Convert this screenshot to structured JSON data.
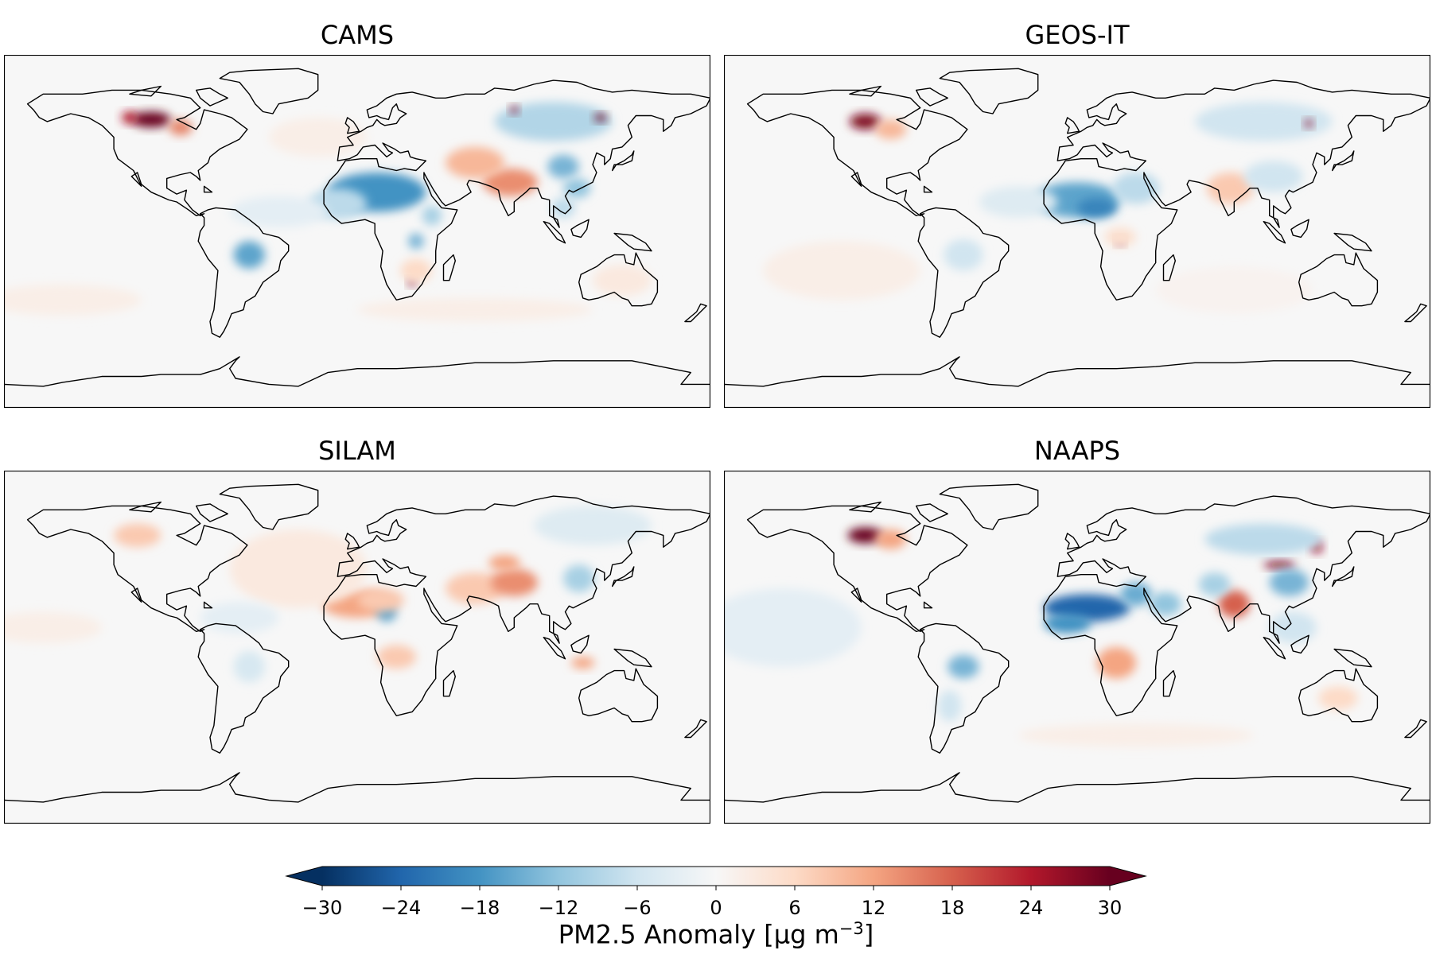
{
  "panels": [
    {
      "name": "cams",
      "title": "CAMS",
      "hotspots": [
        {
          "lon": -105,
          "lat": 57,
          "value": 30,
          "rlon": 10,
          "rlat": 4
        },
        {
          "lon": -116,
          "lat": 58,
          "value": 24,
          "rlon": 4,
          "rlat": 3
        },
        {
          "lon": -90,
          "lat": 53,
          "value": 15,
          "rlon": 6,
          "rlat": 4
        },
        {
          "lon": 10,
          "lat": 20,
          "value": -18,
          "rlon": 25,
          "rlat": 10
        },
        {
          "lon": -10,
          "lat": 14,
          "value": -8,
          "rlon": 15,
          "rlat": 8
        },
        {
          "lon": 38,
          "lat": 8,
          "value": -10,
          "rlon": 5,
          "rlat": 5
        },
        {
          "lon": 30,
          "lat": -5,
          "value": -14,
          "rlon": 4,
          "rlat": 4
        },
        {
          "lon": 78,
          "lat": 25,
          "value": 14,
          "rlon": 14,
          "rlat": 7
        },
        {
          "lon": 60,
          "lat": 35,
          "value": 10,
          "rlon": 15,
          "rlat": 8
        },
        {
          "lon": 105,
          "lat": 33,
          "value": -14,
          "rlon": 8,
          "rlat": 6
        },
        {
          "lon": 112,
          "lat": 22,
          "value": -12,
          "rlon": 7,
          "rlat": 5
        },
        {
          "lon": 105,
          "lat": 12,
          "value": -8,
          "rlon": 6,
          "rlat": 5
        },
        {
          "lon": 100,
          "lat": 56,
          "value": -9,
          "rlon": 30,
          "rlat": 10
        },
        {
          "lon": 124,
          "lat": 58,
          "value": 30,
          "rlon": 3,
          "rlat": 2
        },
        {
          "lon": 80,
          "lat": 62,
          "value": 28,
          "rlon": 2,
          "rlat": 2
        },
        {
          "lon": -55,
          "lat": -12,
          "value": -16,
          "rlon": 8,
          "rlat": 7
        },
        {
          "lon": 28,
          "lat": -26,
          "value": 28,
          "rlon": 2,
          "rlat": 2
        },
        {
          "lon": 30,
          "lat": -20,
          "value": 6,
          "rlon": 8,
          "rlat": 6
        },
        {
          "lon": 135,
          "lat": -25,
          "value": 3,
          "rlon": 15,
          "rlat": 8
        },
        {
          "lon": -40,
          "lat": 10,
          "value": -3,
          "rlon": 25,
          "rlat": 8
        },
        {
          "lon": -150,
          "lat": -35,
          "value": 2,
          "rlon": 40,
          "rlat": 8
        },
        {
          "lon": 60,
          "lat": -40,
          "value": 2,
          "rlon": 60,
          "rlat": 6
        },
        {
          "lon": -20,
          "lat": 48,
          "value": 2,
          "rlon": 25,
          "rlat": 10
        }
      ]
    },
    {
      "name": "geos-it",
      "title": "GEOS-IT",
      "hotspots": [
        {
          "lon": -108,
          "lat": 56,
          "value": 28,
          "rlon": 8,
          "rlat": 4
        },
        {
          "lon": -95,
          "lat": 52,
          "value": 10,
          "rlon": 8,
          "rlat": 5
        },
        {
          "lon": 0,
          "lat": 16,
          "value": -16,
          "rlon": 22,
          "rlat": 9
        },
        {
          "lon": 10,
          "lat": 12,
          "value": -20,
          "rlon": 10,
          "rlat": 5
        },
        {
          "lon": 30,
          "lat": 22,
          "value": -8,
          "rlon": 12,
          "rlat": 8
        },
        {
          "lon": 78,
          "lat": 22,
          "value": 8,
          "rlon": 12,
          "rlat": 8
        },
        {
          "lon": 100,
          "lat": 28,
          "value": -6,
          "rlon": 15,
          "rlat": 8
        },
        {
          "lon": 95,
          "lat": 56,
          "value": -6,
          "rlon": 35,
          "rlat": 10
        },
        {
          "lon": 118,
          "lat": 55,
          "value": 28,
          "rlon": 2,
          "rlat": 2
        },
        {
          "lon": 22,
          "lat": -5,
          "value": 28,
          "rlon": 2,
          "rlat": 2
        },
        {
          "lon": 22,
          "lat": -3,
          "value": 5,
          "rlon": 8,
          "rlat": 5
        },
        {
          "lon": -58,
          "lat": -12,
          "value": -6,
          "rlon": 10,
          "rlat": 8
        },
        {
          "lon": -30,
          "lat": 15,
          "value": -4,
          "rlon": 20,
          "rlat": 8
        },
        {
          "lon": -120,
          "lat": -20,
          "value": 2,
          "rlon": 40,
          "rlat": 15
        },
        {
          "lon": 80,
          "lat": -30,
          "value": 1,
          "rlon": 40,
          "rlat": 12
        }
      ]
    },
    {
      "name": "silam",
      "title": "SILAM",
      "hotspots": [
        {
          "lon": -112,
          "lat": 57,
          "value": 8,
          "rlon": 12,
          "rlat": 6
        },
        {
          "lon": 0,
          "lat": 22,
          "value": 12,
          "rlon": 18,
          "rlat": 7
        },
        {
          "lon": 15,
          "lat": 18,
          "value": -16,
          "rlon": 5,
          "rlat": 5
        },
        {
          "lon": 12,
          "lat": 24,
          "value": 8,
          "rlon": 12,
          "rlat": 6
        },
        {
          "lon": 60,
          "lat": 30,
          "value": 8,
          "rlon": 15,
          "rlat": 8
        },
        {
          "lon": 80,
          "lat": 33,
          "value": 14,
          "rlon": 12,
          "rlat": 7
        },
        {
          "lon": 75,
          "lat": 43,
          "value": 12,
          "rlon": 8,
          "rlat": 4
        },
        {
          "lon": 113,
          "lat": 35,
          "value": -10,
          "rlon": 8,
          "rlat": 7
        },
        {
          "lon": 20,
          "lat": -5,
          "value": 8,
          "rlon": 10,
          "rlat": 6
        },
        {
          "lon": -30,
          "lat": 40,
          "value": 3,
          "rlon": 35,
          "rlat": 20
        },
        {
          "lon": -55,
          "lat": -10,
          "value": -5,
          "rlon": 8,
          "rlat": 8
        },
        {
          "lon": 115,
          "lat": -8,
          "value": 12,
          "rlon": 6,
          "rlat": 3
        },
        {
          "lon": -60,
          "lat": 15,
          "value": -3,
          "rlon": 20,
          "rlat": 8
        },
        {
          "lon": 120,
          "lat": 62,
          "value": -4,
          "rlon": 30,
          "rlat": 10
        },
        {
          "lon": -160,
          "lat": 10,
          "value": 2,
          "rlon": 30,
          "rlat": 8
        }
      ]
    },
    {
      "name": "naaps",
      "title": "NAAPS",
      "hotspots": [
        {
          "lon": -108,
          "lat": 57,
          "value": 30,
          "rlon": 9,
          "rlat": 4
        },
        {
          "lon": -95,
          "lat": 55,
          "value": 12,
          "rlon": 8,
          "rlat": 5
        },
        {
          "lon": 5,
          "lat": 20,
          "value": -24,
          "rlon": 22,
          "rlat": 7
        },
        {
          "lon": -5,
          "lat": 12,
          "value": -18,
          "rlon": 12,
          "rlat": 5
        },
        {
          "lon": 30,
          "lat": 27,
          "value": -15,
          "rlon": 8,
          "rlat": 6
        },
        {
          "lon": 45,
          "lat": 22,
          "value": -12,
          "rlon": 8,
          "rlat": 6
        },
        {
          "lon": 80,
          "lat": 22,
          "value": 18,
          "rlon": 8,
          "rlat": 7
        },
        {
          "lon": 70,
          "lat": 32,
          "value": -10,
          "rlon": 8,
          "rlat": 6
        },
        {
          "lon": 103,
          "lat": 42,
          "value": 28,
          "rlon": 8,
          "rlat": 2
        },
        {
          "lon": 108,
          "lat": 33,
          "value": -14,
          "rlon": 10,
          "rlat": 7
        },
        {
          "lon": 122,
          "lat": 51,
          "value": 26,
          "rlon": 3,
          "rlat": 3
        },
        {
          "lon": 95,
          "lat": 55,
          "value": -8,
          "rlon": 30,
          "rlat": 8
        },
        {
          "lon": 20,
          "lat": -8,
          "value": 12,
          "rlon": 10,
          "rlat": 8
        },
        {
          "lon": -58,
          "lat": -10,
          "value": -14,
          "rlon": 8,
          "rlat": 6
        },
        {
          "lon": -65,
          "lat": -30,
          "value": -6,
          "rlon": 6,
          "rlat": 8
        },
        {
          "lon": 133,
          "lat": -26,
          "value": 6,
          "rlon": 10,
          "rlat": 6
        },
        {
          "lon": 110,
          "lat": 10,
          "value": -6,
          "rlon": 12,
          "rlat": 8
        },
        {
          "lon": -150,
          "lat": 10,
          "value": -3,
          "rlon": 40,
          "rlat": 20
        },
        {
          "lon": 30,
          "lat": -45,
          "value": 2,
          "rlon": 60,
          "rlat": 6
        }
      ]
    }
  ],
  "colorbar": {
    "label_prefix": "PM2.5 Anomaly [µg m",
    "label_exponent": "−3",
    "label_suffix": "]",
    "vmin": -30,
    "vmax": 30,
    "extend": "both",
    "colormap": "RdBu_r",
    "ticks": [
      "−30",
      "−24",
      "−18",
      "−12",
      "−6",
      "0",
      "6",
      "12",
      "18",
      "24",
      "30"
    ],
    "tick_values": [
      -30,
      -24,
      -18,
      -12,
      -6,
      0,
      6,
      12,
      18,
      24,
      30
    ],
    "colors": [
      "#053061",
      "#2166ac",
      "#4393c3",
      "#92c5de",
      "#d1e5f0",
      "#f7f7f7",
      "#fddbc7",
      "#f4a582",
      "#d6604d",
      "#b2182b",
      "#67001f"
    ]
  },
  "coastline_color": "#000000"
}
